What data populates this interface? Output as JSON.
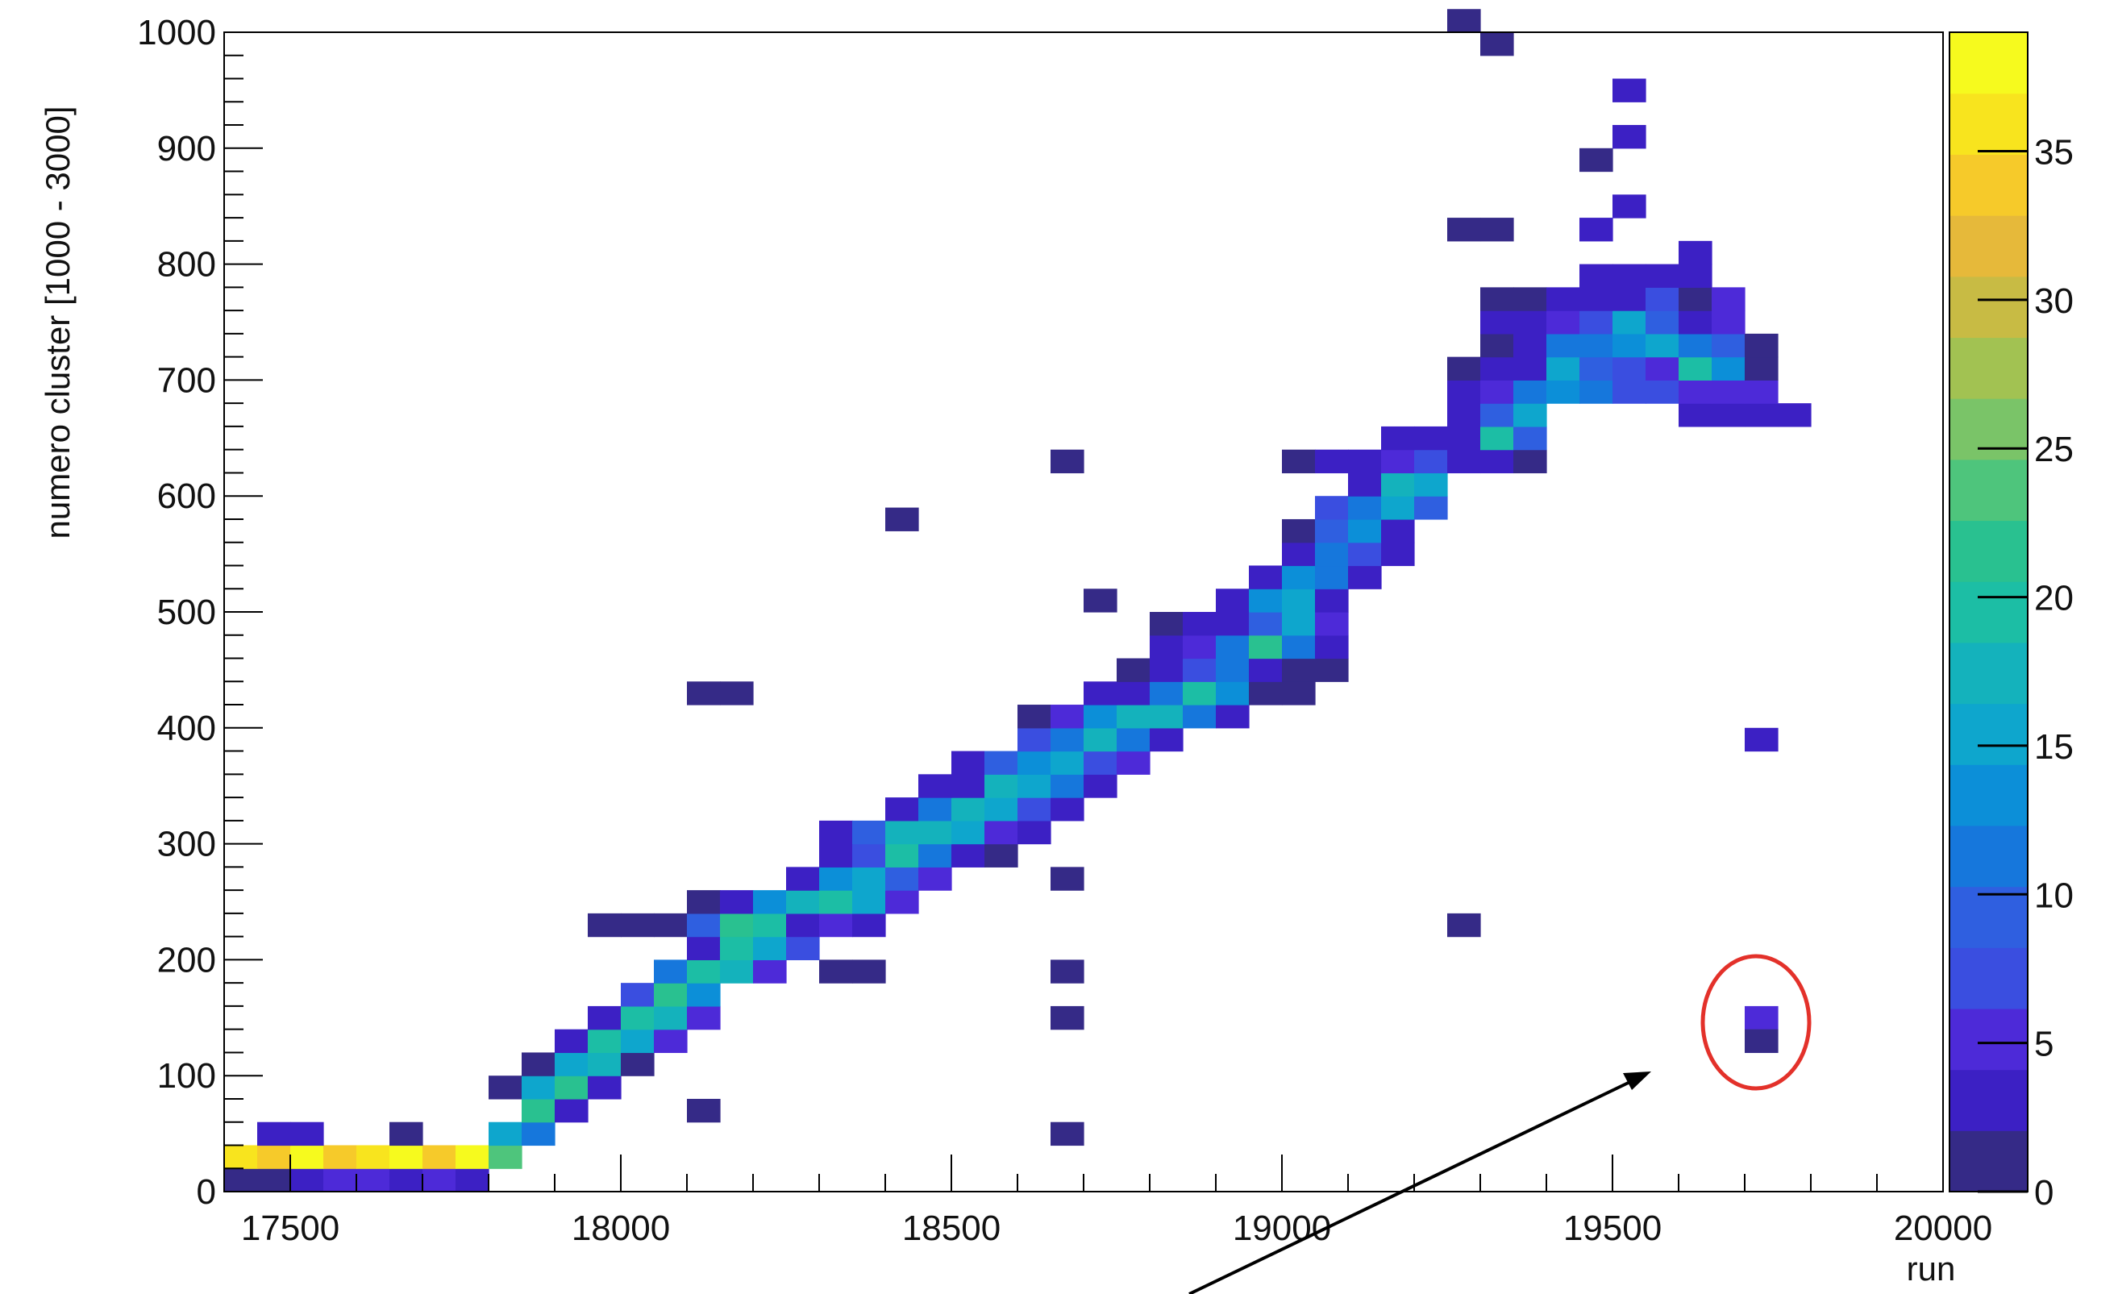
{
  "chart_data": {
    "type": "heatmap",
    "title": "",
    "xlabel": "run",
    "ylabel": "numero cluster [1000 - 3000]",
    "xlim": [
      17400,
      20000
    ],
    "ylim": [
      0,
      1000
    ],
    "zlim": [
      0,
      39
    ],
    "grid": false,
    "xticks": [
      17500,
      18000,
      18500,
      19000,
      19500,
      20000
    ],
    "yticks": [
      0,
      100,
      200,
      300,
      400,
      500,
      600,
      700,
      800,
      900,
      1000
    ],
    "colorbar_ticks": [
      0,
      5,
      10,
      15,
      20,
      25,
      30,
      35
    ],
    "x_bin_width": 50,
    "y_bin_height": 20,
    "cells": [
      [
        17400,
        0,
        2
      ],
      [
        17450,
        0,
        2
      ],
      [
        17500,
        0,
        3
      ],
      [
        17550,
        0,
        5
      ],
      [
        17600,
        0,
        5
      ],
      [
        17650,
        0,
        4
      ],
      [
        17700,
        0,
        5
      ],
      [
        17750,
        0,
        4
      ],
      [
        17400,
        20,
        36
      ],
      [
        17450,
        20,
        33
      ],
      [
        17500,
        20,
        37
      ],
      [
        17550,
        20,
        33
      ],
      [
        17600,
        20,
        35
      ],
      [
        17650,
        20,
        37
      ],
      [
        17700,
        20,
        33
      ],
      [
        17750,
        20,
        37
      ],
      [
        17800,
        20,
        23
      ],
      [
        17450,
        40,
        3
      ],
      [
        17500,
        40,
        3
      ],
      [
        17650,
        40,
        2
      ],
      [
        17800,
        40,
        15
      ],
      [
        17850,
        40,
        11
      ],
      [
        18100,
        60,
        2
      ],
      [
        17850,
        60,
        22
      ],
      [
        17900,
        60,
        3
      ],
      [
        17800,
        80,
        2
      ],
      [
        17850,
        80,
        15
      ],
      [
        17900,
        80,
        22
      ],
      [
        17950,
        80,
        3
      ],
      [
        17850,
        100,
        2
      ],
      [
        17900,
        100,
        15
      ],
      [
        17950,
        100,
        18
      ],
      [
        18000,
        100,
        2
      ],
      [
        17900,
        120,
        3
      ],
      [
        17950,
        120,
        20
      ],
      [
        18000,
        120,
        16
      ],
      [
        18050,
        120,
        5
      ],
      [
        17950,
        140,
        4
      ],
      [
        18000,
        140,
        20
      ],
      [
        18050,
        140,
        18
      ],
      [
        18100,
        140,
        6
      ],
      [
        18000,
        160,
        7
      ],
      [
        18050,
        160,
        21
      ],
      [
        18100,
        160,
        13
      ],
      [
        18050,
        180,
        11
      ],
      [
        18100,
        180,
        20
      ],
      [
        18150,
        180,
        17
      ],
      [
        18200,
        180,
        5
      ],
      [
        18300,
        180,
        2
      ],
      [
        18100,
        200,
        3
      ],
      [
        18150,
        200,
        19
      ],
      [
        18200,
        200,
        16
      ],
      [
        18250,
        200,
        8
      ],
      [
        17950,
        220,
        2
      ],
      [
        18000,
        220,
        2
      ],
      [
        18050,
        220,
        2
      ],
      [
        18100,
        220,
        9
      ],
      [
        18150,
        220,
        22
      ],
      [
        18200,
        220,
        19
      ],
      [
        18250,
        220,
        4
      ],
      [
        18300,
        220,
        5
      ],
      [
        18350,
        220,
        4
      ],
      [
        18100,
        240,
        2
      ],
      [
        18150,
        240,
        3
      ],
      [
        18200,
        240,
        14
      ],
      [
        18250,
        240,
        17
      ],
      [
        18300,
        240,
        20
      ],
      [
        18350,
        240,
        15
      ],
      [
        18400,
        240,
        5
      ],
      [
        18250,
        260,
        3
      ],
      [
        18300,
        260,
        14
      ],
      [
        18350,
        260,
        16
      ],
      [
        18400,
        260,
        9
      ],
      [
        18450,
        260,
        5
      ],
      [
        18300,
        280,
        3
      ],
      [
        18350,
        280,
        8
      ],
      [
        18400,
        280,
        19
      ],
      [
        18450,
        280,
        12
      ],
      [
        18500,
        280,
        3
      ],
      [
        18550,
        280,
        2
      ],
      [
        18300,
        300,
        3
      ],
      [
        18350,
        300,
        10
      ],
      [
        18400,
        300,
        17
      ],
      [
        18450,
        300,
        18
      ],
      [
        18500,
        300,
        15
      ],
      [
        18550,
        300,
        6
      ],
      [
        18600,
        300,
        3
      ],
      [
        18400,
        320,
        3
      ],
      [
        18450,
        320,
        12
      ],
      [
        18500,
        320,
        18
      ],
      [
        18550,
        320,
        16
      ],
      [
        18600,
        320,
        8
      ],
      [
        18650,
        320,
        3
      ],
      [
        18450,
        340,
        3
      ],
      [
        18500,
        340,
        4
      ],
      [
        18550,
        340,
        17
      ],
      [
        18600,
        340,
        15
      ],
      [
        18650,
        340,
        12
      ],
      [
        18700,
        340,
        3
      ],
      [
        18500,
        360,
        3
      ],
      [
        18550,
        360,
        10
      ],
      [
        18600,
        360,
        14
      ],
      [
        18650,
        360,
        16
      ],
      [
        18700,
        360,
        8
      ],
      [
        18750,
        360,
        5
      ],
      [
        18600,
        380,
        8
      ],
      [
        18650,
        380,
        11
      ],
      [
        18700,
        380,
        18
      ],
      [
        18750,
        380,
        12
      ],
      [
        18800,
        380,
        3
      ],
      [
        18600,
        400,
        2
      ],
      [
        18650,
        400,
        6
      ],
      [
        18700,
        400,
        14
      ],
      [
        18750,
        400,
        18
      ],
      [
        18800,
        400,
        17
      ],
      [
        18850,
        400,
        12
      ],
      [
        18900,
        400,
        4
      ],
      [
        18700,
        420,
        3
      ],
      [
        18750,
        420,
        4
      ],
      [
        18800,
        420,
        12
      ],
      [
        18850,
        420,
        20
      ],
      [
        18900,
        420,
        14
      ],
      [
        18950,
        420,
        2
      ],
      [
        19000,
        420,
        2
      ],
      [
        18100,
        420,
        2
      ],
      [
        18750,
        440,
        2
      ],
      [
        18800,
        440,
        3
      ],
      [
        18850,
        440,
        8
      ],
      [
        18900,
        440,
        12
      ],
      [
        18950,
        440,
        3
      ],
      [
        19000,
        440,
        2
      ],
      [
        19050,
        440,
        2
      ],
      [
        18800,
        460,
        3
      ],
      [
        18850,
        460,
        5
      ],
      [
        18900,
        460,
        12
      ],
      [
        18950,
        460,
        22
      ],
      [
        19000,
        460,
        11
      ],
      [
        19050,
        460,
        4
      ],
      [
        18800,
        480,
        2
      ],
      [
        18850,
        480,
        3
      ],
      [
        18900,
        480,
        3
      ],
      [
        18950,
        480,
        10
      ],
      [
        19000,
        480,
        15
      ],
      [
        19050,
        480,
        6
      ],
      [
        18900,
        500,
        4
      ],
      [
        18950,
        500,
        14
      ],
      [
        19000,
        500,
        16
      ],
      [
        19050,
        500,
        3
      ],
      [
        18950,
        520,
        3
      ],
      [
        19000,
        520,
        14
      ],
      [
        19050,
        520,
        11
      ],
      [
        19100,
        520,
        4
      ],
      [
        19000,
        540,
        4
      ],
      [
        19050,
        540,
        12
      ],
      [
        19100,
        540,
        8
      ],
      [
        19150,
        540,
        4
      ],
      [
        19000,
        560,
        2
      ],
      [
        19050,
        560,
        10
      ],
      [
        19100,
        560,
        14
      ],
      [
        19150,
        560,
        3
      ],
      [
        19050,
        580,
        7
      ],
      [
        19100,
        580,
        12
      ],
      [
        19150,
        580,
        15
      ],
      [
        19200,
        580,
        10
      ],
      [
        19100,
        600,
        3
      ],
      [
        19150,
        600,
        18
      ],
      [
        19200,
        600,
        15
      ],
      [
        19000,
        620,
        2
      ],
      [
        19050,
        620,
        3
      ],
      [
        19100,
        620,
        4
      ],
      [
        19150,
        620,
        6
      ],
      [
        19200,
        620,
        7
      ],
      [
        19250,
        620,
        4
      ],
      [
        19300,
        620,
        4
      ],
      [
        19350,
        620,
        2
      ],
      [
        19150,
        640,
        3
      ],
      [
        19200,
        640,
        3
      ],
      [
        19250,
        640,
        4
      ],
      [
        19300,
        640,
        20
      ],
      [
        19350,
        640,
        10
      ],
      [
        19250,
        660,
        3
      ],
      [
        19300,
        660,
        9
      ],
      [
        19350,
        660,
        15
      ],
      [
        19600,
        660,
        3
      ],
      [
        19650,
        660,
        3
      ],
      [
        19700,
        660,
        3
      ],
      [
        19750,
        660,
        3
      ],
      [
        19250,
        680,
        3
      ],
      [
        19300,
        680,
        6
      ],
      [
        19350,
        680,
        11
      ],
      [
        19400,
        680,
        14
      ],
      [
        19450,
        680,
        12
      ],
      [
        19500,
        680,
        8
      ],
      [
        19550,
        680,
        7
      ],
      [
        19600,
        680,
        6
      ],
      [
        19650,
        680,
        6
      ],
      [
        19700,
        680,
        5
      ],
      [
        19250,
        700,
        2
      ],
      [
        19300,
        700,
        3
      ],
      [
        19350,
        700,
        4
      ],
      [
        19400,
        700,
        15
      ],
      [
        19450,
        700,
        10
      ],
      [
        19500,
        700,
        8
      ],
      [
        19550,
        700,
        5
      ],
      [
        19600,
        700,
        20
      ],
      [
        19650,
        700,
        13
      ],
      [
        19700,
        700,
        2
      ],
      [
        19300,
        720,
        2
      ],
      [
        19350,
        720,
        4
      ],
      [
        19400,
        720,
        12
      ],
      [
        19450,
        720,
        12
      ],
      [
        19500,
        720,
        14
      ],
      [
        19550,
        720,
        15
      ],
      [
        19600,
        720,
        12
      ],
      [
        19650,
        720,
        10
      ],
      [
        19700,
        720,
        2
      ],
      [
        19300,
        740,
        3
      ],
      [
        19350,
        740,
        3
      ],
      [
        19400,
        740,
        5
      ],
      [
        19450,
        740,
        8
      ],
      [
        19500,
        740,
        16
      ],
      [
        19550,
        740,
        10
      ],
      [
        19600,
        740,
        4
      ],
      [
        19650,
        740,
        5
      ],
      [
        19300,
        760,
        2
      ],
      [
        19350,
        760,
        2
      ],
      [
        19400,
        760,
        4
      ],
      [
        19450,
        760,
        3
      ],
      [
        19500,
        760,
        3
      ],
      [
        19550,
        760,
        7
      ],
      [
        19600,
        760,
        2
      ],
      [
        19650,
        760,
        5
      ],
      [
        19450,
        780,
        3
      ],
      [
        19500,
        780,
        3
      ],
      [
        19550,
        780,
        3
      ],
      [
        19600,
        780,
        3
      ],
      [
        19600,
        800,
        3
      ],
      [
        19250,
        820,
        2
      ],
      [
        19300,
        820,
        2
      ],
      [
        19450,
        820,
        3
      ],
      [
        19500,
        840,
        3
      ],
      [
        19450,
        880,
        2
      ],
      [
        19500,
        900,
        3
      ],
      [
        19500,
        940,
        3
      ],
      [
        19300,
        980,
        2
      ],
      [
        19250,
        1000,
        2
      ],
      [
        18650,
        620,
        2
      ],
      [
        18400,
        570,
        2
      ],
      [
        18700,
        500,
        2
      ],
      [
        18150,
        420,
        2
      ],
      [
        19700,
        380,
        3
      ],
      [
        18650,
        260,
        2
      ],
      [
        19250,
        220,
        2
      ],
      [
        18350,
        180,
        2
      ],
      [
        18650,
        180,
        2
      ],
      [
        18650,
        140,
        2
      ],
      [
        19700,
        140,
        5
      ],
      [
        19700,
        120,
        2
      ],
      [
        18650,
        40,
        2
      ]
    ]
  },
  "colors": {
    "palette": [
      "#352a87",
      "#3c20c4",
      "#4d2ad8",
      "#3a4ee0",
      "#2f5fe0",
      "#1677dc",
      "#0c8fd8",
      "#0ea6cd",
      "#14b2bc",
      "#1cbea5",
      "#29c190",
      "#4ec57c",
      "#7ac468",
      "#a2c252",
      "#c8bb44",
      "#e6b93a",
      "#f6ca2a",
      "#f8e41e",
      "#f6fa1e"
    ],
    "annotation_circle": "#e3312a",
    "arrow": "#000000"
  }
}
